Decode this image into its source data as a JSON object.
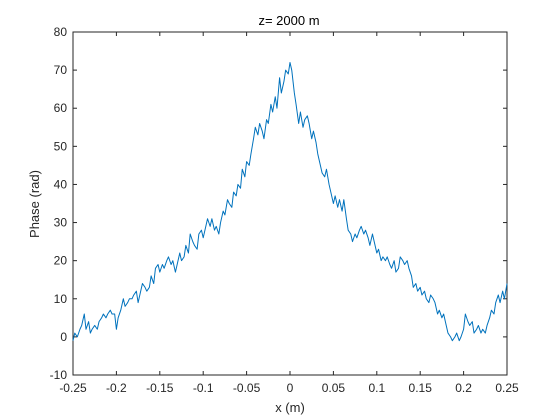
{
  "chart_data": {
    "type": "line",
    "title": "z= 2000 m",
    "xlabel": "x (m)",
    "ylabel": "Phase (rad)",
    "xlim": [
      -0.25,
      0.25
    ],
    "ylim": [
      -10,
      80
    ],
    "xticks": [
      -0.25,
      -0.2,
      -0.15,
      -0.1,
      -0.05,
      0,
      0.05,
      0.1,
      0.15,
      0.2,
      0.25
    ],
    "xtick_labels": [
      "-0.25",
      "-0.2",
      "-0.15",
      "-0.1",
      "-0.05",
      "0",
      "0.05",
      "0.1",
      "0.15",
      "0.2",
      "0.25"
    ],
    "yticks": [
      -10,
      0,
      10,
      20,
      30,
      40,
      50,
      60,
      70,
      80
    ],
    "ytick_labels": [
      "-10",
      "0",
      "10",
      "20",
      "30",
      "40",
      "50",
      "60",
      "70",
      "80"
    ],
    "grid": false,
    "line_color": "#0072bd",
    "series": [
      {
        "x": [
          -0.25,
          -0.248,
          -0.245,
          -0.242,
          -0.24,
          -0.237,
          -0.235,
          -0.232,
          -0.23,
          -0.228,
          -0.225,
          -0.222,
          -0.22,
          -0.217,
          -0.215,
          -0.212,
          -0.21,
          -0.207,
          -0.205,
          -0.202,
          -0.2,
          -0.198,
          -0.195,
          -0.192,
          -0.19,
          -0.187,
          -0.185,
          -0.182,
          -0.18,
          -0.177,
          -0.175,
          -0.172,
          -0.17,
          -0.167,
          -0.165,
          -0.162,
          -0.16,
          -0.157,
          -0.155,
          -0.152,
          -0.15,
          -0.147,
          -0.145,
          -0.142,
          -0.14,
          -0.137,
          -0.135,
          -0.132,
          -0.13,
          -0.127,
          -0.125,
          -0.122,
          -0.12,
          -0.117,
          -0.115,
          -0.112,
          -0.11,
          -0.107,
          -0.105,
          -0.102,
          -0.1,
          -0.097,
          -0.095,
          -0.092,
          -0.09,
          -0.087,
          -0.085,
          -0.082,
          -0.08,
          -0.077,
          -0.075,
          -0.072,
          -0.07,
          -0.067,
          -0.065,
          -0.062,
          -0.06,
          -0.057,
          -0.055,
          -0.052,
          -0.05,
          -0.047,
          -0.045,
          -0.042,
          -0.04,
          -0.037,
          -0.035,
          -0.032,
          -0.03,
          -0.027,
          -0.025,
          -0.022,
          -0.02,
          -0.017,
          -0.015,
          -0.012,
          -0.01,
          -0.007,
          -0.005,
          -0.002,
          0,
          0.002,
          0.005,
          0.007,
          0.01,
          0.012,
          0.015,
          0.017,
          0.02,
          0.022,
          0.025,
          0.027,
          0.03,
          0.032,
          0.035,
          0.037,
          0.04,
          0.042,
          0.045,
          0.047,
          0.05,
          0.052,
          0.055,
          0.057,
          0.06,
          0.062,
          0.065,
          0.067,
          0.07,
          0.072,
          0.075,
          0.077,
          0.08,
          0.082,
          0.085,
          0.087,
          0.09,
          0.092,
          0.095,
          0.097,
          0.1,
          0.102,
          0.105,
          0.107,
          0.11,
          0.112,
          0.115,
          0.117,
          0.12,
          0.122,
          0.125,
          0.127,
          0.13,
          0.132,
          0.135,
          0.137,
          0.14,
          0.142,
          0.145,
          0.147,
          0.15,
          0.152,
          0.155,
          0.157,
          0.16,
          0.162,
          0.165,
          0.167,
          0.17,
          0.172,
          0.175,
          0.177,
          0.18,
          0.182,
          0.185,
          0.187,
          0.19,
          0.192,
          0.195,
          0.197,
          0.2,
          0.202,
          0.205,
          0.207,
          0.21,
          0.212,
          0.215,
          0.217,
          0.22,
          0.222,
          0.225,
          0.227,
          0.23,
          0.232,
          0.235,
          0.237,
          0.24,
          0.242,
          0.245,
          0.247,
          0.25
        ],
        "y": [
          -1,
          1,
          0,
          2,
          3,
          6,
          2,
          4,
          1,
          2,
          3,
          2,
          4,
          5,
          6,
          5,
          6,
          7,
          6,
          6,
          2,
          5,
          7,
          10,
          8,
          9,
          10,
          10,
          11,
          12,
          9,
          12,
          14,
          13,
          12,
          13,
          16,
          14,
          18,
          19,
          17,
          19,
          18,
          20,
          21,
          19,
          20,
          17,
          19,
          22,
          20,
          21,
          24,
          22,
          27,
          25,
          24,
          23,
          27,
          28,
          26,
          29,
          31,
          29,
          31,
          28,
          29,
          27,
          30,
          33,
          32,
          36,
          35,
          34,
          38,
          37,
          40,
          39,
          44,
          42,
          46,
          45,
          48,
          52,
          55,
          53,
          56,
          54,
          52,
          57,
          56,
          61,
          59,
          63,
          60,
          68,
          64,
          67,
          70,
          69,
          72,
          70,
          64,
          61,
          56,
          59,
          55,
          57,
          58,
          56,
          52,
          54,
          51,
          48,
          45,
          43,
          42,
          44,
          40,
          38,
          35,
          37,
          34,
          36,
          33,
          36,
          31,
          28,
          27,
          25,
          27,
          26,
          28,
          29,
          27,
          28,
          26,
          24,
          27,
          25,
          22,
          23,
          20,
          21,
          20,
          21,
          19,
          18,
          20,
          17,
          18,
          21,
          20,
          19,
          20,
          18,
          16,
          13,
          14,
          12,
          13,
          11,
          12,
          10,
          9,
          11,
          10,
          9,
          6,
          7,
          5,
          6,
          3,
          1,
          0,
          -1,
          0,
          1,
          -1,
          0,
          2,
          6,
          4,
          3,
          4,
          1,
          2,
          3,
          1,
          2,
          1,
          3,
          5,
          7,
          6,
          9,
          11,
          9,
          12,
          10,
          14
        ]
      }
    ]
  }
}
